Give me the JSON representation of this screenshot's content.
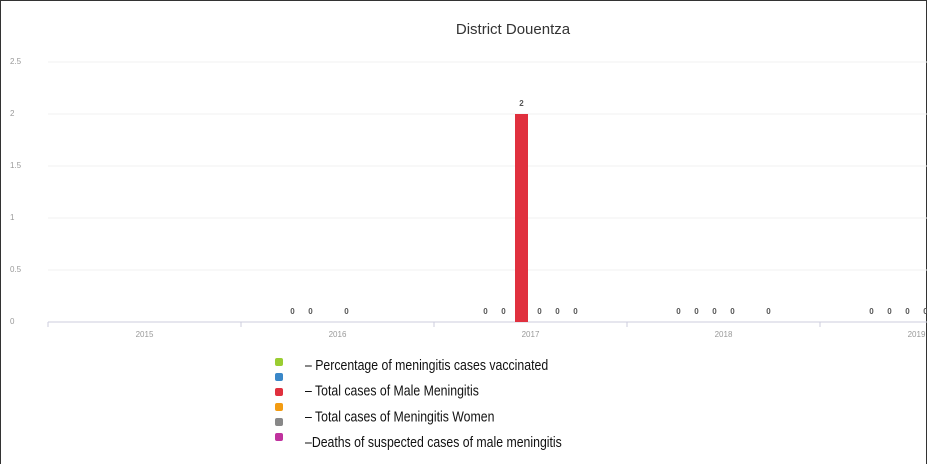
{
  "chart_data": {
    "type": "bar",
    "title": "District Douentza",
    "categories": [
      "2015",
      "2016",
      "2017",
      "2018",
      "2019"
    ],
    "series": [
      {
        "name": "– Percentage of meningitis cases vaccinated",
        "color": "#9acd32",
        "values": [
          null,
          0,
          0,
          0,
          0
        ]
      },
      {
        "name": "– Total cases of Male Meningitis",
        "color": "#3a87c8",
        "values": [
          null,
          0,
          0,
          0,
          0
        ]
      },
      {
        "name": "– Total cases of Meningitis Women",
        "color": "#e0303e",
        "values": [
          null,
          null,
          2,
          0,
          0
        ]
      },
      {
        "name": "–Deaths of suspected cases of male meningitis",
        "color": "#f39c12",
        "values": [
          null,
          0,
          0,
          0,
          0
        ]
      },
      {
        "color": "#888888",
        "values": [
          null,
          null,
          0,
          null,
          null
        ]
      },
      {
        "color": "#c0329e",
        "values": [
          null,
          null,
          0,
          0,
          null
        ]
      }
    ],
    "ylim": [
      0,
      2.5
    ],
    "yticks": [
      0,
      0.5,
      1,
      1.5,
      2,
      2.5
    ],
    "grid": true
  }
}
